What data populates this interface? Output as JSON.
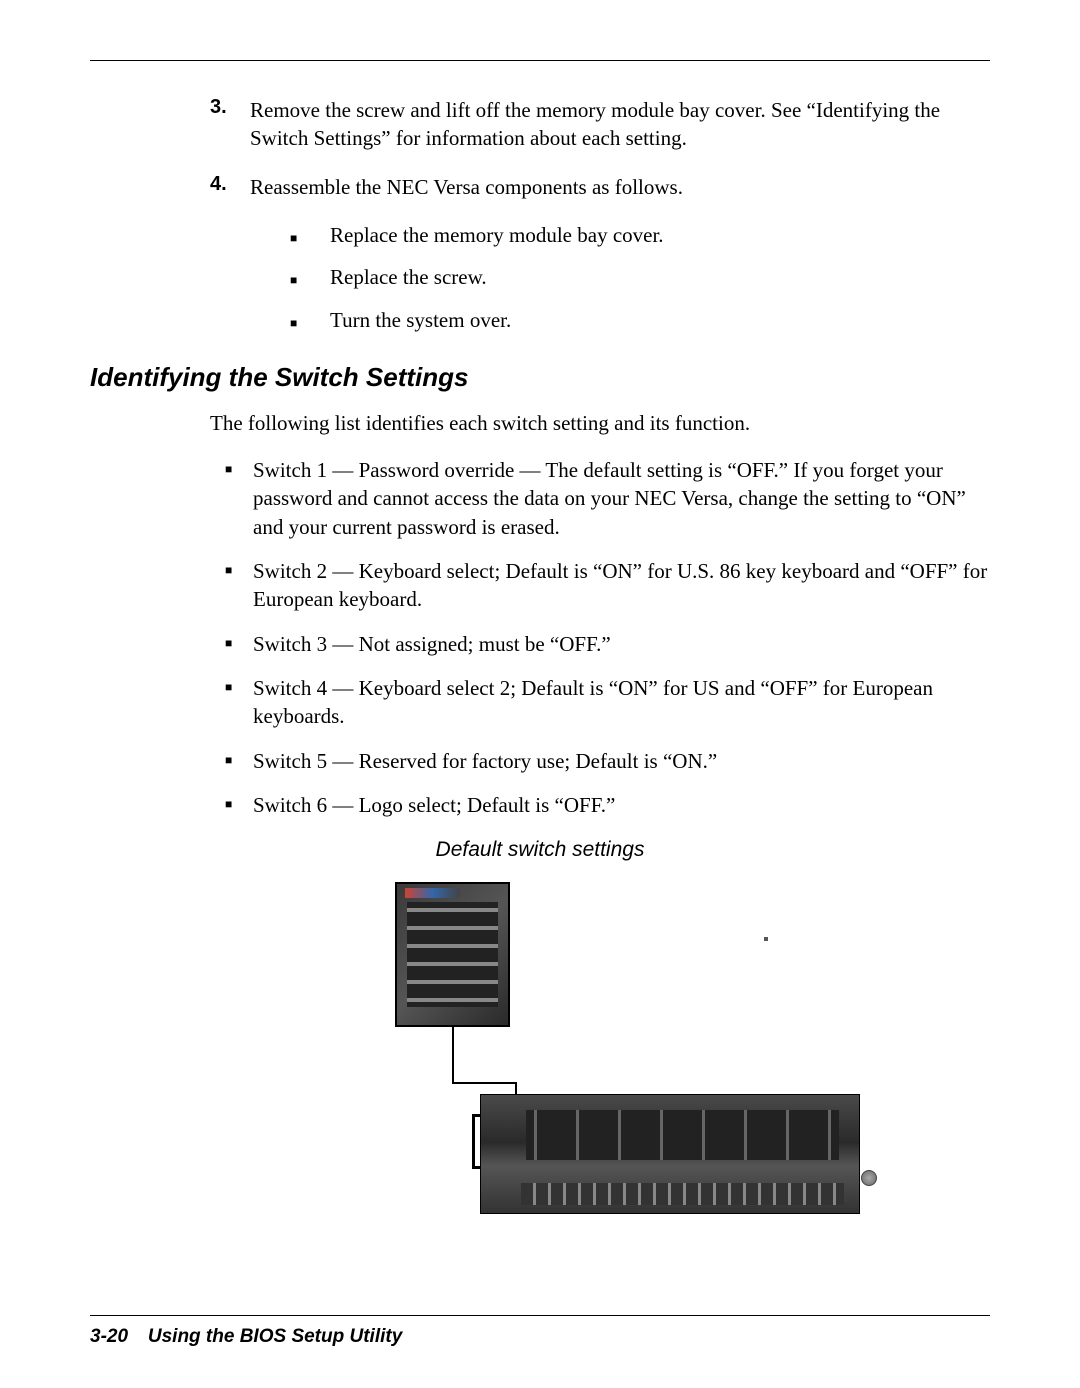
{
  "steps": {
    "s3": {
      "num": "3.",
      "text": "Remove the screw and lift off the memory module bay cover. See “Identifying the Switch Settings” for information about each setting."
    },
    "s4": {
      "num": "4.",
      "text": "Reassemble the NEC Versa components as follows."
    }
  },
  "substeps": {
    "a": "Replace the memory module bay cover.",
    "b": "Replace the screw.",
    "c": "Turn the system over."
  },
  "section_heading": "Identifying the Switch Settings",
  "intro": "The following list identifies each switch setting and its function.",
  "switches": {
    "s1": "Switch 1 — Password override — The default setting is “OFF.” If you forget your password and cannot access the data on your NEC Versa, change the setting to “ON” and your current password is erased.",
    "s2": "Switch 2 — Keyboard select; Default is “ON” for U.S. 86 key keyboard and “OFF” for European keyboard.",
    "s3": "Switch 3 — Not assigned; must be “OFF.”",
    "s4": "Switch 4 —  Keyboard select 2; Default is “ON” for US and “OFF” for European keyboards.",
    "s5": "Switch 5 — Reserved for factory use; Default is “ON.”",
    "s6": "Switch 6 — Logo select; Default is “OFF.”"
  },
  "figure_caption": "Default switch settings",
  "footer": {
    "page": "3-20",
    "title": "Using the BIOS Setup Utility"
  },
  "bullet_glyph": "■"
}
